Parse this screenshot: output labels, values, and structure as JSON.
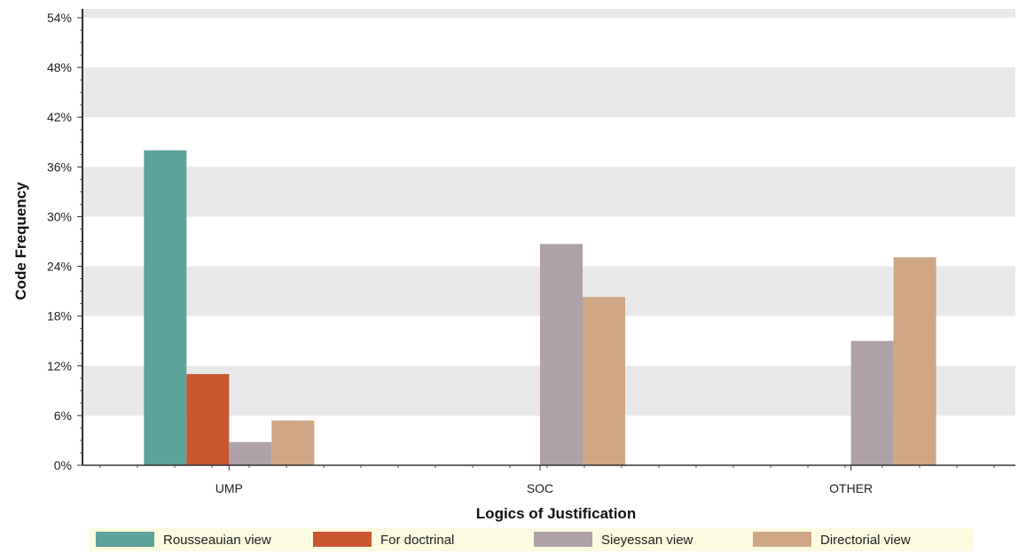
{
  "chart_data": {
    "type": "bar",
    "xlabel": "Logics of Justification",
    "ylabel": "Code Frequency",
    "categories": [
      "UMP",
      "SOC",
      "OTHER"
    ],
    "ylim": [
      0,
      54
    ],
    "yticks": [
      0,
      6,
      12,
      18,
      24,
      30,
      36,
      42,
      48,
      54
    ],
    "ytick_suffix": "%",
    "grid": "alternating horizontal bands",
    "legend_position": "bottom",
    "series": [
      {
        "name": "Rousseauian view",
        "color": "#5ba39b",
        "values": [
          38,
          0,
          0
        ]
      },
      {
        "name": "For doctrinal",
        "color": "#c9562f",
        "values": [
          11,
          0,
          0
        ]
      },
      {
        "name": "Sieyessan view",
        "color": "#aea2a8",
        "values": [
          2.8,
          26.7,
          15
        ]
      },
      {
        "name": "Directorial view",
        "color": "#cfa784",
        "values": [
          5.4,
          20.3,
          25.1
        ]
      }
    ]
  },
  "colors": {
    "band": "#e8e8e8",
    "axis": "#333333",
    "legend_bg": "#fbfbdf"
  }
}
